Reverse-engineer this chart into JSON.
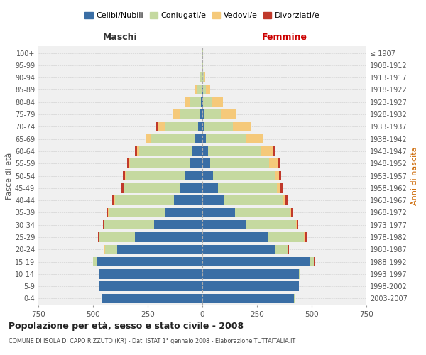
{
  "age_groups": [
    "0-4",
    "5-9",
    "10-14",
    "15-19",
    "20-24",
    "25-29",
    "30-34",
    "35-39",
    "40-44",
    "45-49",
    "50-54",
    "55-59",
    "60-64",
    "65-69",
    "70-74",
    "75-79",
    "80-84",
    "85-89",
    "90-94",
    "95-99",
    "100+"
  ],
  "birth_years": [
    "2003-2007",
    "1998-2002",
    "1993-1997",
    "1988-1992",
    "1983-1987",
    "1978-1982",
    "1973-1977",
    "1968-1972",
    "1963-1967",
    "1958-1962",
    "1953-1957",
    "1948-1952",
    "1943-1947",
    "1938-1942",
    "1933-1937",
    "1928-1932",
    "1923-1927",
    "1918-1922",
    "1913-1917",
    "1908-1912",
    "≤ 1907"
  ],
  "maschi": {
    "celibi": [
      460,
      470,
      470,
      480,
      390,
      310,
      220,
      170,
      130,
      100,
      80,
      60,
      50,
      35,
      20,
      10,
      5,
      3,
      2,
      0,
      0
    ],
    "coniugati": [
      1,
      2,
      5,
      20,
      55,
      160,
      230,
      260,
      270,
      260,
      270,
      270,
      240,
      200,
      150,
      90,
      50,
      20,
      8,
      3,
      2
    ],
    "vedovi": [
      0,
      0,
      0,
      0,
      2,
      3,
      1,
      2,
      1,
      2,
      3,
      5,
      10,
      20,
      35,
      35,
      25,
      8,
      3,
      1,
      0
    ],
    "divorziati": [
      0,
      0,
      0,
      1,
      2,
      3,
      5,
      5,
      10,
      12,
      10,
      8,
      8,
      5,
      5,
      2,
      0,
      0,
      0,
      0,
      0
    ]
  },
  "femmine": {
    "nubili": [
      420,
      440,
      440,
      490,
      330,
      300,
      200,
      150,
      100,
      70,
      50,
      35,
      25,
      15,
      10,
      5,
      3,
      2,
      1,
      0,
      0
    ],
    "coniugate": [
      1,
      2,
      5,
      20,
      60,
      165,
      230,
      250,
      270,
      270,
      280,
      270,
      240,
      185,
      130,
      80,
      40,
      15,
      5,
      2,
      2
    ],
    "vedove": [
      0,
      0,
      0,
      1,
      3,
      5,
      3,
      5,
      8,
      15,
      20,
      40,
      60,
      75,
      80,
      70,
      50,
      20,
      8,
      2,
      1
    ],
    "divorziate": [
      0,
      0,
      0,
      1,
      3,
      8,
      5,
      7,
      12,
      15,
      12,
      10,
      8,
      5,
      5,
      2,
      1,
      0,
      0,
      0,
      0
    ]
  },
  "colors": {
    "celibi": "#3a6ea5",
    "coniugati": "#c5d9a0",
    "vedovi": "#f5c97a",
    "divorziati": "#c0392b"
  },
  "xlim": 750,
  "title": "Popolazione per età, sesso e stato civile - 2008",
  "subtitle": "COMUNE DI ISOLA DI CAPO RIZZUTO (KR) - Dati ISTAT 1° gennaio 2008 - Elaborazione TUTTAITALIA.IT",
  "xlabel_left": "Maschi",
  "xlabel_right": "Femmine",
  "ylabel_left": "Fasce di età",
  "ylabel_right": "Anni di nascita",
  "bg_color": "#ffffff",
  "plot_bg_color": "#f0f0f0"
}
